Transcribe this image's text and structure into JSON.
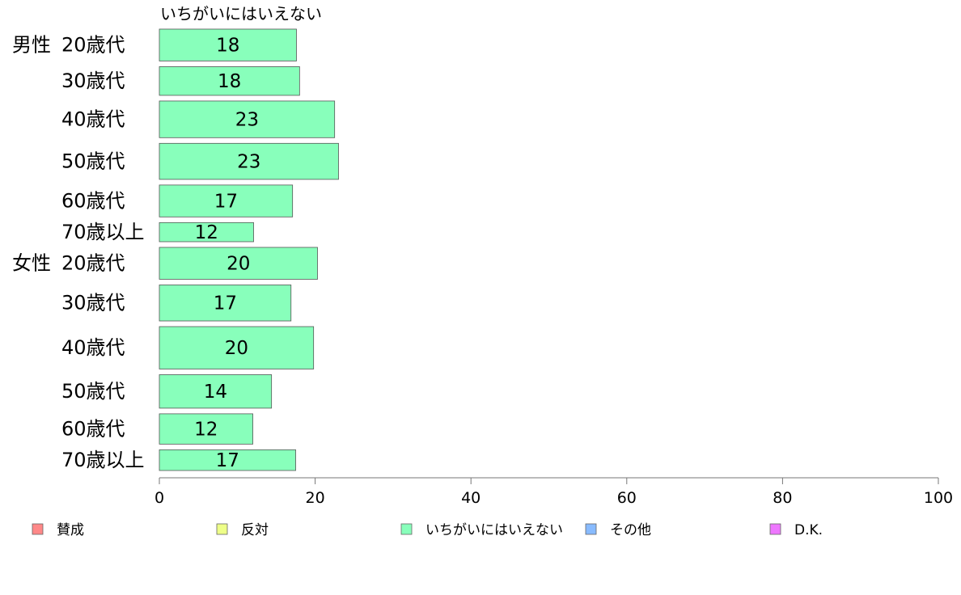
{
  "chart_data": {
    "type": "bar",
    "orientation": "horizontal",
    "series_label": "いちがいにはいえない",
    "series_color": "#88ffbb",
    "categories": [
      {
        "group": "男性",
        "label": "20歳代"
      },
      {
        "group": "",
        "label": "30歳代"
      },
      {
        "group": "",
        "label": "40歳代"
      },
      {
        "group": "",
        "label": "50歳代"
      },
      {
        "group": "",
        "label": "60歳代"
      },
      {
        "group": "",
        "label": "70歳以上"
      },
      {
        "group": "女性",
        "label": "20歳代"
      },
      {
        "group": "",
        "label": "30歳代"
      },
      {
        "group": "",
        "label": "40歳代"
      },
      {
        "group": "",
        "label": "50歳代"
      },
      {
        "group": "",
        "label": "60歳代"
      },
      {
        "group": "",
        "label": "70歳以上"
      }
    ],
    "values": [
      17.6,
      18.0,
      22.5,
      23.0,
      17.1,
      12.1,
      20.3,
      16.9,
      19.8,
      14.4,
      12.0,
      17.5
    ],
    "data_labels": [
      "18",
      "18",
      "23",
      "23",
      "17",
      "12",
      "20",
      "17",
      "20",
      "14",
      "12",
      "17"
    ],
    "bar_weights": [
      1.0,
      0.9,
      1.15,
      1.13,
      1.0,
      0.6,
      1.0,
      1.13,
      1.33,
      1.05,
      0.95,
      0.65
    ],
    "xlim": [
      0,
      100
    ],
    "x_ticks": [
      0,
      20,
      40,
      60,
      80,
      100
    ],
    "grid": false,
    "legend_position": "bottom",
    "legend": [
      {
        "label": "賛成",
        "color": "#ff8888"
      },
      {
        "label": "反対",
        "color": "#eeff88"
      },
      {
        "label": "いちがいにはいえない",
        "color": "#88ffbb"
      },
      {
        "label": "その他",
        "color": "#88bbff"
      },
      {
        "label": "D.K.",
        "color": "#ee77ff"
      }
    ]
  }
}
